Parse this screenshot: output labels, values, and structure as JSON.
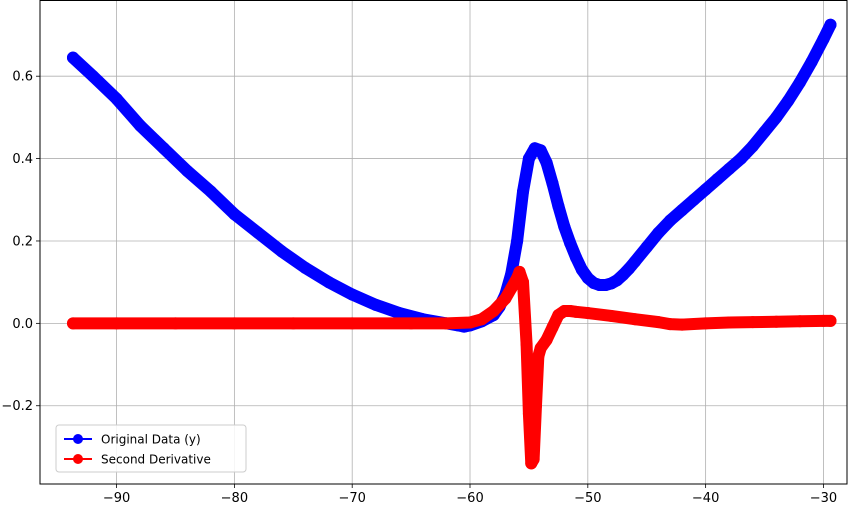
{
  "chart_data": {
    "type": "line",
    "title": "",
    "xlabel": "",
    "ylabel": "",
    "xlim": [
      -96.5,
      -28.0
    ],
    "ylim": [
      -0.39,
      0.785
    ],
    "grid": true,
    "legend_position": "lower-left",
    "x_ticks": [
      -90,
      -80,
      -70,
      -60,
      -50,
      -40,
      -30
    ],
    "x_tick_labels": [
      "−90",
      "−80",
      "−70",
      "−60",
      "−50",
      "−40",
      "−30"
    ],
    "y_ticks": [
      -0.2,
      0.0,
      0.2,
      0.4,
      0.6
    ],
    "y_tick_labels": [
      "−0.2",
      "0.0",
      "0.2",
      "0.4",
      "0.6"
    ],
    "series": [
      {
        "name": "Original Data (y)",
        "color": "#0000ff",
        "x": [
          -93.7,
          -92,
          -90,
          -88,
          -86,
          -84,
          -82,
          -80,
          -78,
          -76,
          -74,
          -72,
          -70,
          -68,
          -66,
          -64,
          -62,
          -61,
          -60.5,
          -60,
          -59,
          -58,
          -57.5,
          -57,
          -56.5,
          -56,
          -55.5,
          -55,
          -54.5,
          -54,
          -53.5,
          -53,
          -52.5,
          -52,
          -51.5,
          -51,
          -50.5,
          -50,
          -49.5,
          -49,
          -48.5,
          -48,
          -47.5,
          -47,
          -46.5,
          -46,
          -45,
          -44,
          -43,
          -42,
          -41,
          -40,
          -39,
          -38,
          -37,
          -36,
          -35,
          -34,
          -33,
          -32,
          -31,
          -30,
          -29.4
        ],
        "y": [
          0.645,
          0.6,
          0.545,
          0.48,
          0.425,
          0.37,
          0.32,
          0.265,
          0.22,
          0.175,
          0.135,
          0.1,
          0.07,
          0.045,
          0.025,
          0.01,
          0.0,
          -0.005,
          -0.008,
          -0.005,
          0.005,
          0.02,
          0.04,
          0.07,
          0.12,
          0.2,
          0.32,
          0.4,
          0.425,
          0.42,
          0.39,
          0.34,
          0.285,
          0.235,
          0.195,
          0.16,
          0.13,
          0.11,
          0.098,
          0.093,
          0.093,
          0.097,
          0.105,
          0.118,
          0.133,
          0.15,
          0.185,
          0.22,
          0.25,
          0.275,
          0.3,
          0.325,
          0.35,
          0.375,
          0.4,
          0.43,
          0.465,
          0.5,
          0.54,
          0.585,
          0.635,
          0.69,
          0.725
        ]
      },
      {
        "name": "Second Derivative",
        "color": "#ff0000",
        "x": [
          -93.7,
          -90,
          -85,
          -80,
          -75,
          -70,
          -65,
          -62,
          -60,
          -59,
          -58,
          -57,
          -56.5,
          -56,
          -55.8,
          -55.5,
          -55.2,
          -55.0,
          -54.8,
          -54.6,
          -54.4,
          -54.2,
          -54.0,
          -53.5,
          -53,
          -52.5,
          -52,
          -51.5,
          -51,
          -50,
          -48,
          -46,
          -44,
          -43,
          -42,
          -40,
          -38,
          -36,
          -34,
          -32,
          -30,
          -29.4
        ],
        "y": [
          0.0,
          0.0,
          0.0,
          0.0,
          0.0,
          0.0,
          0.0,
          0.0,
          0.002,
          0.01,
          0.03,
          0.06,
          0.085,
          0.11,
          0.125,
          0.1,
          -0.05,
          -0.22,
          -0.34,
          -0.33,
          -0.2,
          -0.08,
          -0.06,
          -0.04,
          -0.01,
          0.02,
          0.03,
          0.03,
          0.028,
          0.025,
          0.018,
          0.01,
          0.003,
          -0.002,
          -0.003,
          0.0,
          0.002,
          0.003,
          0.004,
          0.005,
          0.006,
          0.006
        ]
      }
    ]
  }
}
